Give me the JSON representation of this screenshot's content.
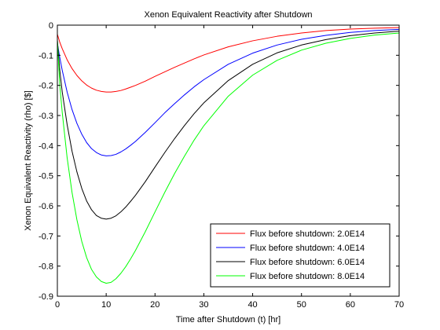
{
  "chart_data": {
    "type": "line",
    "title": "Xenon Equivalent Reactivity after Shutdown",
    "xlabel": "Time after Shutdown (t) [hr]",
    "ylabel": "Xenon Equivalent Reactivity (rho) [$]",
    "xlim": [
      0,
      70
    ],
    "ylim": [
      -0.9,
      0
    ],
    "xticks": [
      0,
      10,
      20,
      30,
      40,
      50,
      60,
      70
    ],
    "yticks": [
      0,
      -0.1,
      -0.2,
      -0.3,
      -0.4,
      -0.5,
      -0.6,
      -0.7,
      -0.8,
      -0.9
    ],
    "xtick_labels": [
      "0",
      "10",
      "20",
      "30",
      "40",
      "50",
      "60",
      "70"
    ],
    "ytick_labels": [
      "0",
      "-0.1",
      "-0.2",
      "-0.3",
      "-0.4",
      "-0.5",
      "-0.6",
      "-0.7",
      "-0.8",
      "-0.9"
    ],
    "grid": false,
    "legend_position": "bottom-right",
    "x": [
      0,
      0.5,
      1,
      2,
      3,
      4,
      5,
      6,
      7,
      8,
      9,
      10,
      11,
      12,
      13,
      14,
      15,
      16,
      18,
      20,
      22,
      24,
      26,
      28,
      30,
      35,
      40,
      45,
      50,
      55,
      60,
      65,
      70
    ],
    "series": [
      {
        "name": "Flux before shutdown: 2.0E14",
        "color": "#ff0000",
        "values": [
          -0.03,
          -0.057,
          -0.078,
          -0.115,
          -0.144,
          -0.167,
          -0.185,
          -0.199,
          -0.209,
          -0.216,
          -0.22,
          -0.222,
          -0.222,
          -0.22,
          -0.217,
          -0.212,
          -0.206,
          -0.2,
          -0.186,
          -0.17,
          -0.155,
          -0.14,
          -0.126,
          -0.112,
          -0.099,
          -0.072,
          -0.052,
          -0.037,
          -0.026,
          -0.018,
          -0.013,
          -0.01,
          -0.008
        ]
      },
      {
        "name": "Flux before shutdown: 4.0E14",
        "color": "#0000ff",
        "values": [
          -0.06,
          -0.108,
          -0.15,
          -0.222,
          -0.28,
          -0.326,
          -0.362,
          -0.39,
          -0.41,
          -0.423,
          -0.431,
          -0.434,
          -0.433,
          -0.429,
          -0.421,
          -0.411,
          -0.399,
          -0.386,
          -0.356,
          -0.324,
          -0.291,
          -0.261,
          -0.232,
          -0.205,
          -0.181,
          -0.13,
          -0.093,
          -0.066,
          -0.047,
          -0.034,
          -0.024,
          -0.018,
          -0.014
        ]
      },
      {
        "name": "Flux before shutdown: 6.0E14",
        "color": "#000000",
        "values": [
          -0.05,
          -0.15,
          -0.222,
          -0.33,
          -0.418,
          -0.487,
          -0.542,
          -0.584,
          -0.613,
          -0.632,
          -0.641,
          -0.644,
          -0.641,
          -0.633,
          -0.62,
          -0.604,
          -0.585,
          -0.565,
          -0.52,
          -0.471,
          -0.423,
          -0.377,
          -0.334,
          -0.294,
          -0.258,
          -0.184,
          -0.13,
          -0.092,
          -0.066,
          -0.048,
          -0.035,
          -0.026,
          -0.02
        ]
      },
      {
        "name": "Flux before shutdown: 8.0E14",
        "color": "#00ff00",
        "values": [
          -0.05,
          -0.2,
          -0.29,
          -0.44,
          -0.555,
          -0.646,
          -0.718,
          -0.772,
          -0.811,
          -0.836,
          -0.851,
          -0.857,
          -0.854,
          -0.842,
          -0.824,
          -0.802,
          -0.776,
          -0.748,
          -0.686,
          -0.62,
          -0.555,
          -0.493,
          -0.436,
          -0.382,
          -0.334,
          -0.236,
          -0.166,
          -0.117,
          -0.083,
          -0.06,
          -0.044,
          -0.033,
          -0.026
        ]
      }
    ]
  }
}
